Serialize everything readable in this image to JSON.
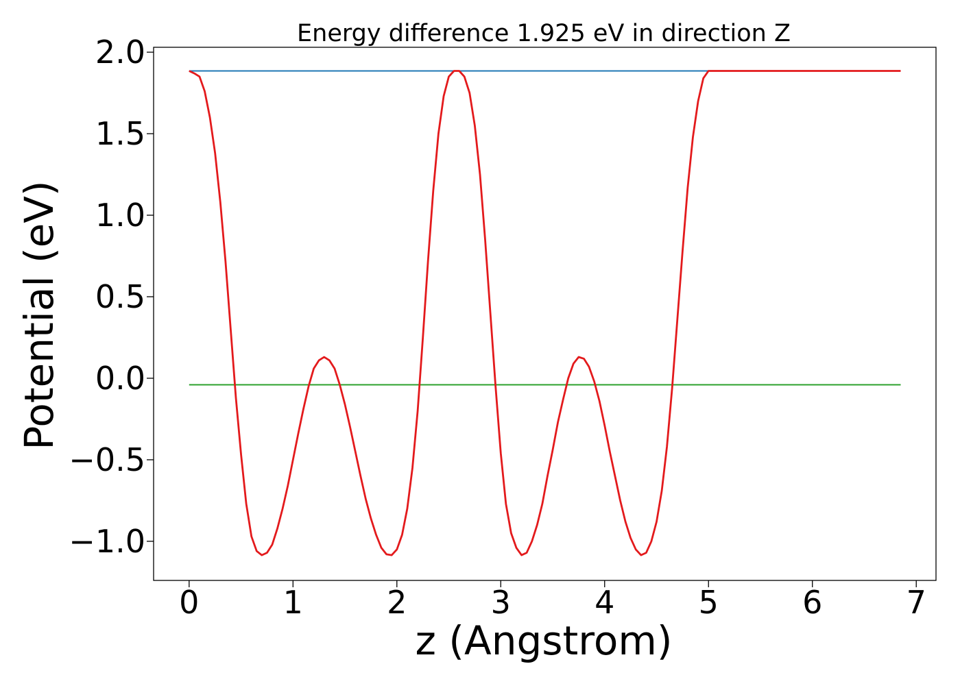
{
  "chart_data": {
    "type": "line",
    "title": "Energy difference 1.925 eV in direction Z",
    "xlabel": "z (Angstrom)",
    "ylabel": "Potential (eV)",
    "xlim": [
      -0.342,
      7.19
    ],
    "ylim": [
      -1.24,
      2.03
    ],
    "xticks": [
      0,
      1,
      2,
      3,
      4,
      5,
      6,
      7
    ],
    "xtick_labels": [
      "0",
      "1",
      "2",
      "3",
      "4",
      "5",
      "6",
      "7"
    ],
    "yticks": [
      -1.0,
      -0.5,
      0.0,
      0.5,
      1.0,
      1.5,
      2.0
    ],
    "ytick_labels": [
      "−1.0",
      "−0.5",
      "0.0",
      "0.5",
      "1.0",
      "1.5",
      "2.0"
    ],
    "grid": false,
    "legend": "none",
    "series": [
      {
        "color": "#1f77b4",
        "x": [
          0.0,
          6.85
        ],
        "y": [
          1.885,
          1.885
        ]
      },
      {
        "color": "#2ca02c",
        "x": [
          0.0,
          6.85
        ],
        "y": [
          -0.04,
          -0.04
        ]
      },
      {
        "color": "#e31a1c",
        "x": [
          0.0,
          0.05,
          0.1,
          0.15,
          0.2,
          0.25,
          0.3,
          0.35,
          0.4,
          0.45,
          0.5,
          0.55,
          0.6,
          0.65,
          0.7,
          0.75,
          0.8,
          0.85,
          0.9,
          0.95,
          1.0,
          1.05,
          1.1,
          1.15,
          1.2,
          1.25,
          1.3,
          1.35,
          1.4,
          1.45,
          1.5,
          1.55,
          1.6,
          1.65,
          1.7,
          1.75,
          1.8,
          1.85,
          1.9,
          1.95,
          2.0,
          2.05,
          2.1,
          2.15,
          2.2,
          2.25,
          2.3,
          2.35,
          2.4,
          2.45,
          2.5,
          2.55,
          2.6,
          2.65,
          2.7,
          2.75,
          2.8,
          2.85,
          2.9,
          2.95,
          3.0,
          3.05,
          3.1,
          3.15,
          3.2,
          3.25,
          3.3,
          3.35,
          3.4,
          3.45,
          3.5,
          3.55,
          3.6,
          3.65,
          3.7,
          3.75,
          3.8,
          3.85,
          3.9,
          3.95,
          4.0,
          4.05,
          4.1,
          4.15,
          4.2,
          4.25,
          4.3,
          4.35,
          4.4,
          4.45,
          4.5,
          4.55,
          4.6,
          4.65,
          4.7,
          4.75,
          4.8,
          4.85,
          4.9,
          4.95,
          5.0,
          5.05,
          5.1,
          5.15,
          5.2,
          5.25,
          5.3,
          5.35,
          5.4,
          5.45,
          5.5,
          5.55,
          5.6,
          5.65,
          5.7,
          5.75,
          5.8,
          5.85,
          5.9,
          5.95,
          6.0,
          6.05,
          6.1,
          6.15,
          6.2,
          6.25,
          6.3,
          6.35,
          6.4,
          6.45,
          6.5,
          6.55,
          6.6,
          6.65,
          6.7,
          6.75,
          6.8,
          6.85
        ],
        "y": [
          1.885,
          1.87,
          1.85,
          1.76,
          1.6,
          1.38,
          1.08,
          0.72,
          0.3,
          -0.12,
          -0.47,
          -0.77,
          -0.97,
          -1.06,
          -1.085,
          -1.07,
          -1.02,
          -0.92,
          -0.8,
          -0.66,
          -0.5,
          -0.34,
          -0.19,
          -0.05,
          0.06,
          0.11,
          0.13,
          0.11,
          0.06,
          -0.04,
          -0.16,
          -0.3,
          -0.45,
          -0.6,
          -0.74,
          -0.86,
          -0.96,
          -1.04,
          -1.08,
          -1.085,
          -1.05,
          -0.96,
          -0.8,
          -0.55,
          -0.2,
          0.25,
          0.72,
          1.15,
          1.5,
          1.73,
          1.85,
          1.885,
          1.885,
          1.85,
          1.75,
          1.55,
          1.25,
          0.85,
          0.4,
          -0.05,
          -0.46,
          -0.77,
          -0.95,
          -1.04,
          -1.085,
          -1.07,
          -1.0,
          -0.9,
          -0.77,
          -0.6,
          -0.44,
          -0.27,
          -0.13,
          0.0,
          0.09,
          0.13,
          0.12,
          0.07,
          -0.02,
          -0.14,
          -0.29,
          -0.45,
          -0.6,
          -0.75,
          -0.88,
          -0.98,
          -1.05,
          -1.085,
          -1.07,
          -1.0,
          -0.88,
          -0.69,
          -0.42,
          -0.06,
          0.36,
          0.78,
          1.17,
          1.48,
          1.7,
          1.84,
          1.885,
          1.885,
          1.885,
          1.885,
          1.885,
          1.885,
          1.885,
          1.885,
          1.885,
          1.885,
          1.885,
          1.885,
          1.885,
          1.885,
          1.885,
          1.885,
          1.885,
          1.885,
          1.885,
          1.885,
          1.885,
          1.885,
          1.885,
          1.885,
          1.885,
          1.885,
          1.885,
          1.885,
          1.885,
          1.885,
          1.885,
          1.885,
          1.885,
          1.885,
          1.885,
          1.885,
          1.885,
          1.885
        ]
      }
    ]
  }
}
